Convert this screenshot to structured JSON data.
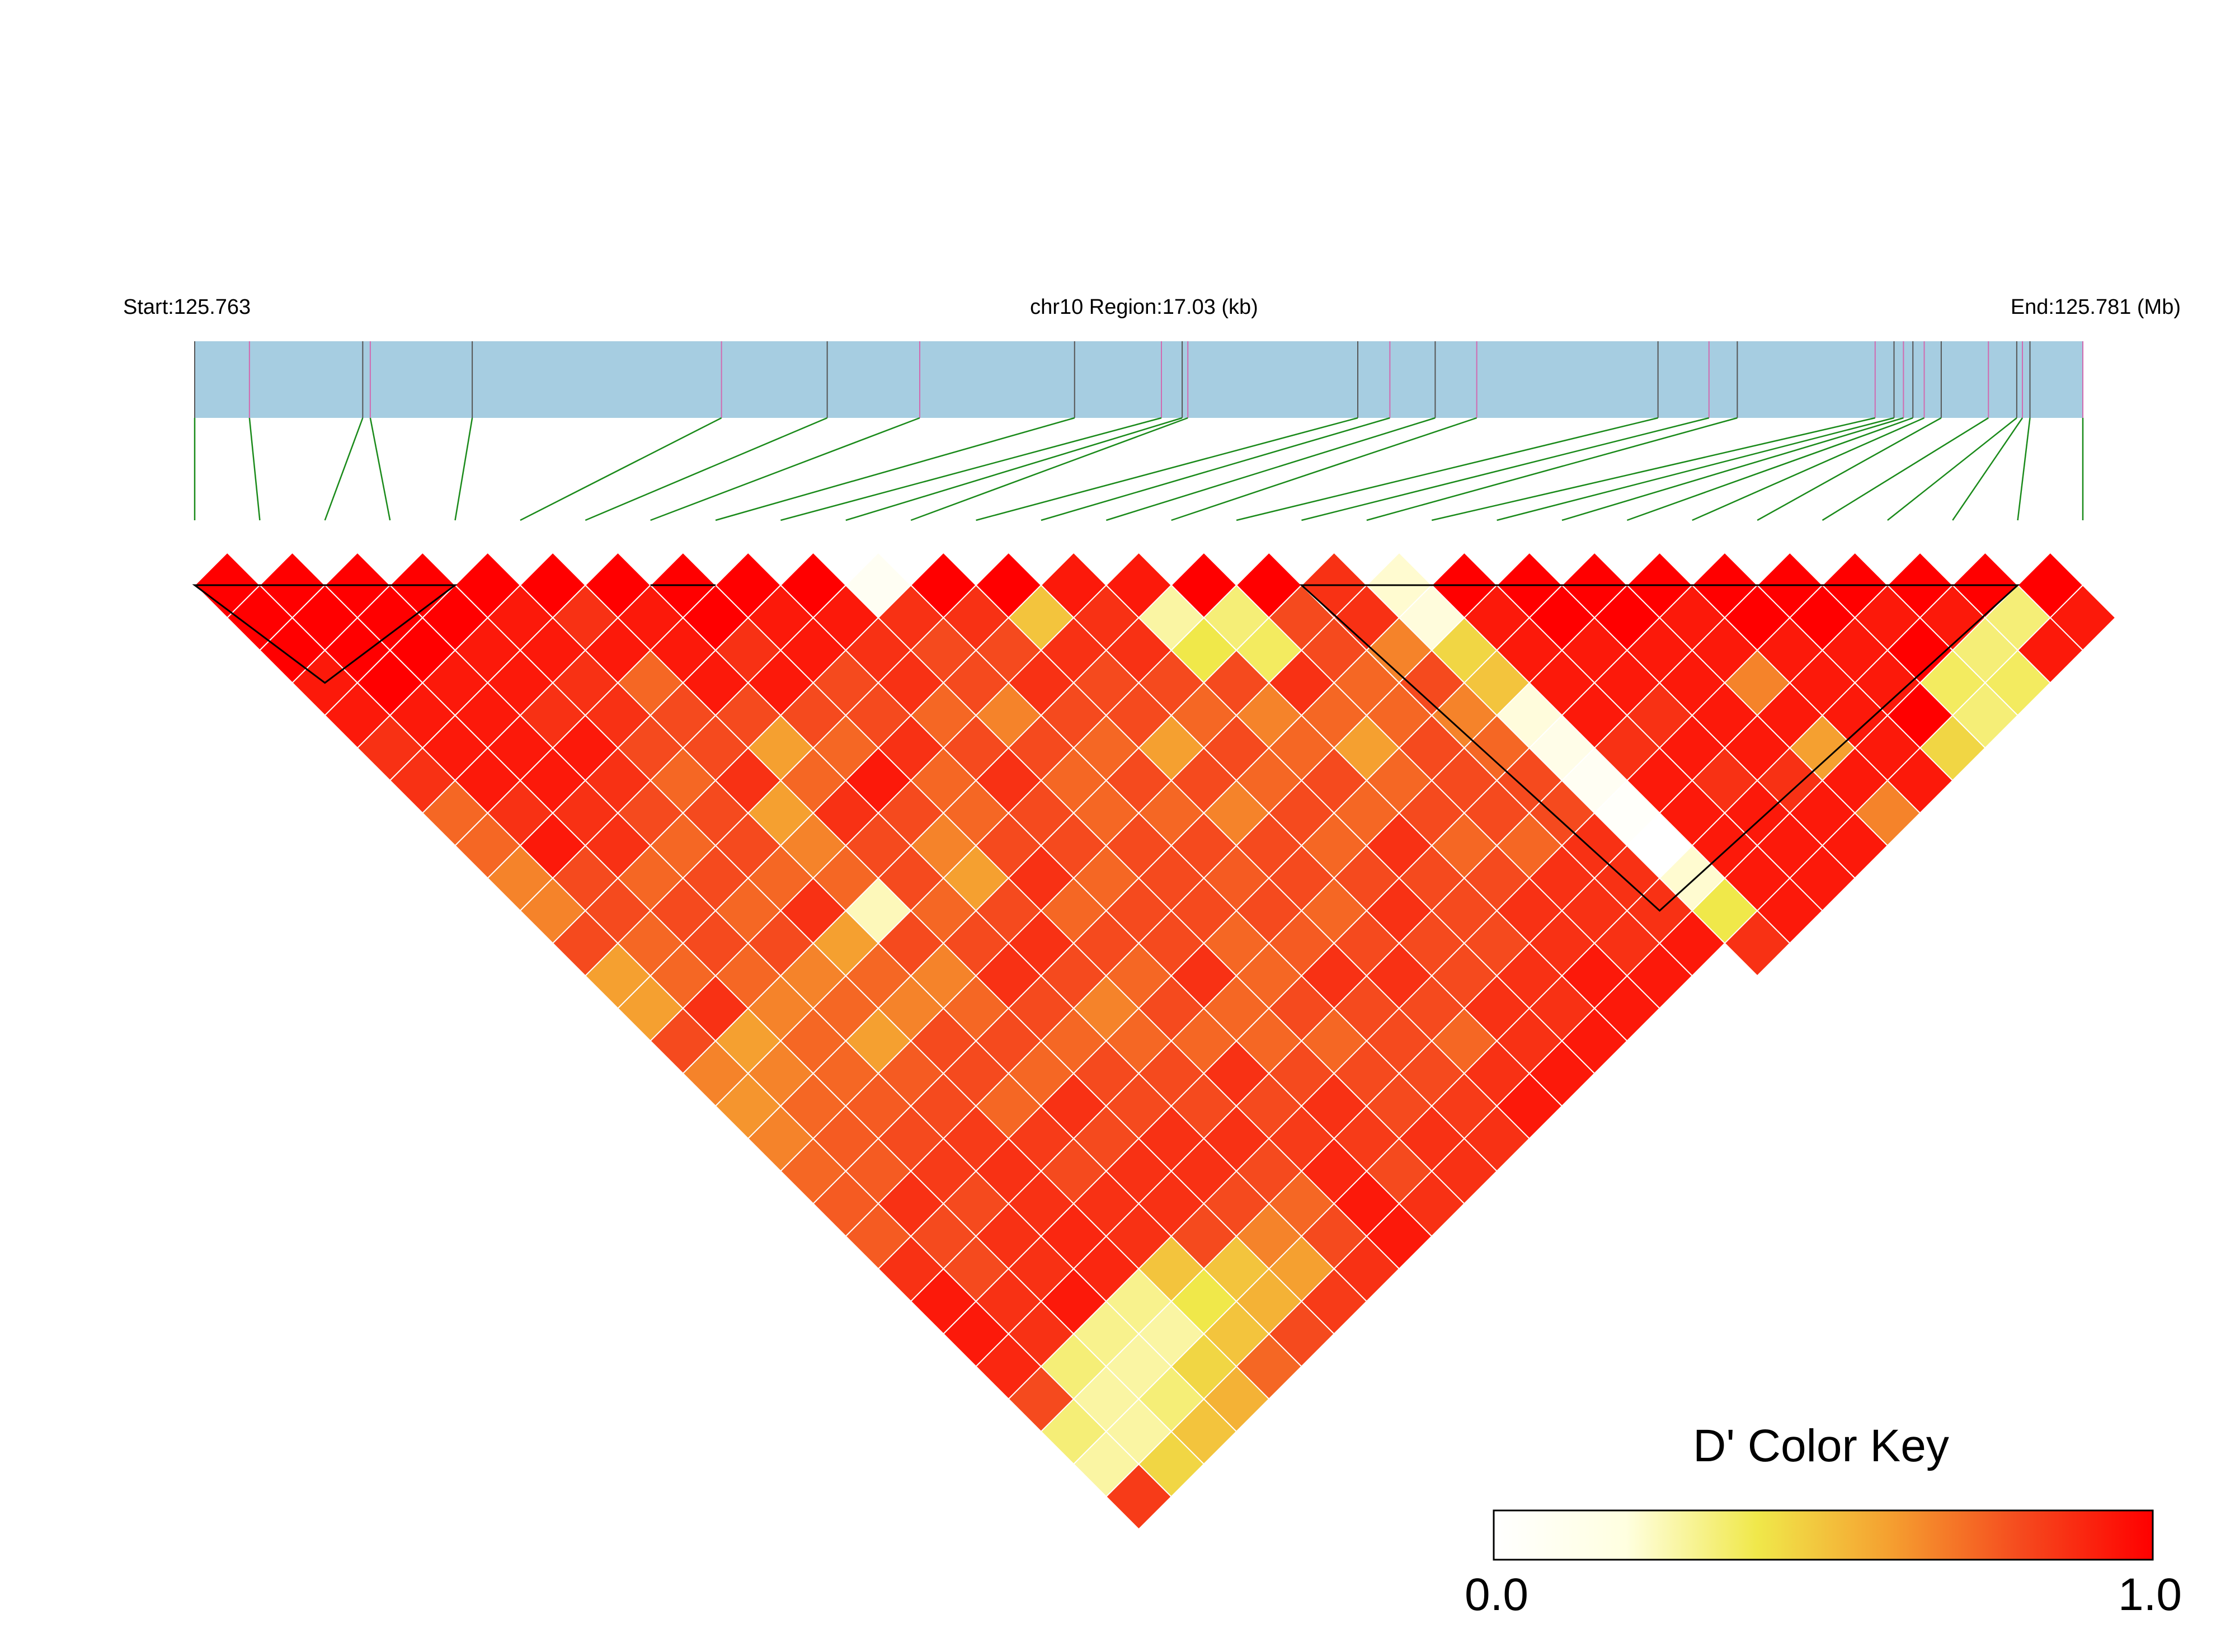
{
  "header": {
    "start_label": "Start:125.763",
    "region_label": "chr10 Region:17.03 (kb)",
    "end_label": "End:125.781 (Mb)"
  },
  "color_key": {
    "title": "D' Color Key",
    "min_label": "0.0",
    "max_label": "1.0",
    "stops": [
      "#ffffff",
      "#ffffe0",
      "#f0e84a",
      "#f5a030",
      "#f54a1e",
      "#ff0000"
    ]
  },
  "colors": {
    "track_fill": "#a6cde1",
    "snp_tick_primary": "#555555",
    "snp_tick_secondary": "#d16ab0",
    "connector": "#1a8a1a",
    "block_outline": "#000000",
    "cell_border": "#ffffff"
  },
  "chart_data": {
    "type": "heatmap",
    "description_free": true,
    "n_snps": 30,
    "region_start_mb": 125.763,
    "region_end_mb": 125.781,
    "region_length_kb": 17.03,
    "snp_positions_fraction": [
      0.0,
      0.029,
      0.089,
      0.093,
      0.147,
      0.279,
      0.335,
      0.384,
      0.466,
      0.512,
      0.523,
      0.526,
      0.616,
      0.633,
      0.657,
      0.679,
      0.775,
      0.802,
      0.817,
      0.89,
      0.9,
      0.905,
      0.91,
      0.916,
      0.925,
      0.95,
      0.965,
      0.968,
      0.972,
      1.0
    ],
    "haplotype_blocks": [
      [
        0,
        4
      ],
      [
        7,
        8
      ],
      [
        17,
        28
      ]
    ],
    "dprime_scale": [
      0.0,
      1.0
    ],
    "dprime_matrix": [
      [
        1.0,
        1.0,
        1.0,
        0.95,
        0.95,
        0.9,
        0.9,
        0.8,
        0.8,
        0.75,
        0.75,
        0.85,
        0.7,
        0.7,
        0.85,
        0.75,
        0.72,
        0.75,
        0.8,
        0.82,
        0.82,
        0.9,
        0.95,
        0.95,
        0.92,
        0.85,
        0.4,
        0.3,
        0.88
      ],
      [
        1.0,
        1.0,
        1.0,
        1.0,
        0.95,
        0.95,
        0.95,
        0.9,
        0.95,
        0.85,
        0.85,
        0.8,
        0.8,
        0.9,
        0.7,
        0.75,
        0.8,
        0.82,
        0.82,
        0.9,
        0.85,
        0.85,
        0.9,
        0.9,
        0.4,
        0.3,
        0.3,
        0.55
      ],
      [
        1.0,
        1.0,
        1.0,
        0.95,
        0.95,
        0.95,
        0.95,
        0.9,
        0.9,
        0.8,
        0.85,
        0.85,
        0.8,
        0.75,
        0.8,
        0.8,
        0.82,
        0.85,
        0.88,
        0.85,
        0.9,
        0.9,
        0.95,
        0.35,
        0.3,
        0.4,
        0.6
      ],
      [
        1.0,
        1.0,
        0.95,
        0.95,
        0.9,
        0.95,
        0.9,
        0.85,
        0.8,
        0.85,
        0.8,
        0.85,
        0.75,
        0.8,
        0.7,
        0.82,
        0.85,
        0.88,
        0.9,
        0.9,
        0.92,
        0.92,
        0.35,
        0.3,
        0.55,
        0.65
      ],
      [
        1.0,
        0.95,
        0.95,
        0.9,
        0.9,
        0.85,
        0.8,
        0.85,
        0.85,
        0.8,
        0.9,
        0.7,
        0.8,
        0.75,
        0.85,
        0.85,
        0.8,
        0.88,
        0.85,
        0.9,
        0.9,
        0.6,
        0.5,
        0.6,
        0.8
      ],
      [
        1.0,
        0.9,
        0.95,
        0.8,
        0.85,
        0.85,
        0.9,
        0.7,
        0.75,
        0.8,
        0.25,
        0.85,
        0.75,
        0.8,
        0.85,
        0.8,
        0.9,
        0.85,
        0.9,
        0.9,
        0.85,
        0.6,
        0.65,
        0.85
      ],
      [
        1.0,
        0.95,
        0.95,
        0.95,
        0.85,
        0.7,
        0.8,
        0.9,
        0.85,
        0.85,
        0.8,
        0.85,
        0.9,
        0.85,
        0.8,
        0.85,
        0.85,
        0.9,
        0.9,
        0.85,
        0.75,
        0.7,
        0.88
      ],
      [
        1.0,
        1.0,
        0.9,
        0.95,
        0.85,
        0.8,
        0.95,
        0.85,
        0.75,
        0.7,
        0.85,
        0.9,
        0.85,
        0.75,
        0.8,
        0.85,
        0.85,
        0.9,
        0.85,
        0.8,
        0.85,
        0.9
      ],
      [
        1.0,
        0.95,
        0.95,
        0.85,
        0.85,
        0.9,
        0.8,
        0.8,
        0.85,
        0.9,
        0.8,
        0.85,
        0.8,
        0.85,
        0.8,
        0.9,
        0.85,
        0.88,
        0.92,
        0.95,
        0.95
      ],
      [
        1.0,
        0.95,
        0.9,
        0.9,
        0.8,
        0.85,
        0.9,
        0.85,
        0.85,
        0.8,
        0.85,
        0.85,
        0.9,
        0.8,
        0.8,
        0.85,
        0.9,
        0.88,
        0.85,
        0.9
      ],
      [
        0.05,
        0.9,
        0.85,
        0.85,
        0.75,
        0.85,
        0.8,
        0.8,
        0.85,
        0.85,
        0.85,
        0.8,
        0.8,
        0.85,
        0.8,
        0.85,
        0.85,
        0.9,
        0.9
      ],
      [
        1.0,
        0.9,
        0.85,
        0.9,
        0.85,
        0.8,
        0.85,
        0.8,
        0.85,
        0.82,
        0.85,
        0.82,
        0.9,
        0.85,
        0.85,
        0.85,
        0.88,
        0.9
      ],
      [
        1.0,
        0.6,
        0.9,
        0.85,
        0.85,
        0.7,
        0.85,
        0.75,
        0.85,
        0.85,
        0.8,
        0.85,
        0.9,
        0.85,
        0.8,
        0.9,
        0.95
      ],
      [
        0.95,
        0.9,
        0.9,
        0.85,
        0.8,
        0.85,
        0.8,
        0.85,
        0.8,
        0.85,
        0.9,
        0.85,
        0.85,
        0.9,
        0.9,
        0.95
      ],
      [
        0.95,
        0.3,
        0.5,
        0.85,
        0.75,
        0.8,
        0.85,
        0.8,
        0.9,
        0.85,
        0.85,
        0.85,
        0.9,
        0.9,
        0.95
      ],
      [
        1.0,
        0.4,
        0.45,
        0.9,
        0.8,
        0.7,
        0.8,
        0.85,
        0.8,
        0.85,
        0.9,
        0.9,
        0.95,
        0.95
      ],
      [
        1.0,
        0.85,
        0.85,
        0.8,
        0.8,
        0.85,
        0.85,
        0.85,
        0.8,
        0.9,
        0.9,
        0.9,
        0.95
      ],
      [
        0.9,
        0.9,
        0.75,
        0.85,
        0.75,
        0.8,
        0.85,
        0.85,
        0.9,
        0.9,
        0.9,
        0.95
      ],
      [
        0.2,
        0.15,
        0.55,
        0.6,
        0.15,
        0.1,
        0.05,
        0.02,
        0.0,
        0.2,
        0.5,
        0.9
      ],
      [
        1.0,
        0.95,
        0.95,
        0.95,
        0.95,
        0.9,
        0.95,
        0.95,
        0.95,
        0.95,
        0.95
      ],
      [
        1.0,
        1.0,
        0.95,
        0.95,
        0.9,
        0.95,
        0.9,
        0.95,
        0.95,
        0.95
      ],
      [
        1.0,
        1.0,
        0.95,
        0.95,
        0.95,
        0.95,
        0.9,
        0.95,
        0.95
      ],
      [
        1.0,
        0.95,
        0.95,
        0.75,
        0.95,
        0.7,
        0.95,
        0.75
      ],
      [
        1.0,
        1.0,
        0.95,
        0.95,
        0.95,
        0.95,
        0.95
      ],
      [
        1.0,
        1.0,
        0.95,
        0.95,
        1.0,
        0.55
      ],
      [
        1.0,
        0.95,
        1.0,
        0.45,
        0.4
      ],
      [
        1.0,
        0.95,
        0.4,
        0.45
      ],
      [
        1.0,
        0.4,
        0.95
      ],
      [
        1.0,
        0.95
      ]
    ]
  }
}
